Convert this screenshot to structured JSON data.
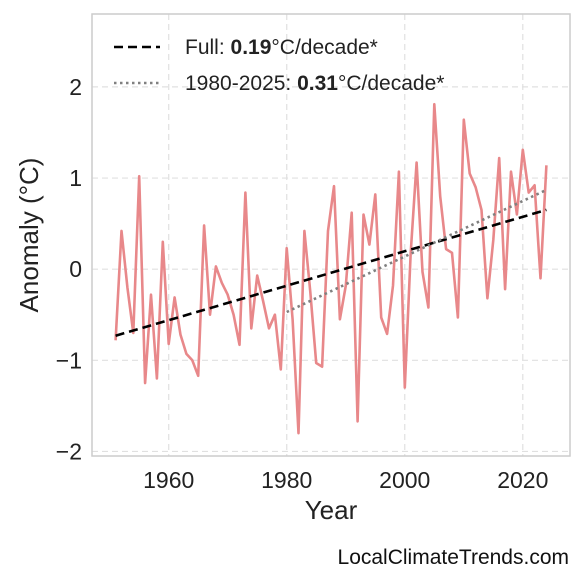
{
  "chart_data": {
    "type": "line",
    "xlabel": "Year",
    "ylabel": "Anomaly (°C)",
    "xlim": [
      1947,
      2028
    ],
    "ylim": [
      -2.05,
      2.8
    ],
    "xticks": [
      1960,
      1980,
      2000,
      2020
    ],
    "yticks": [
      -2,
      -1,
      0,
      1,
      2
    ],
    "ytick_labels": [
      "−2",
      "−1",
      "0",
      "1",
      "2"
    ],
    "grid": true,
    "legend_position": "top-left",
    "series": [
      {
        "color": "#e8888a",
        "x": [
          1951,
          1952,
          1953,
          1954,
          1955,
          1956,
          1957,
          1958,
          1959,
          1960,
          1961,
          1962,
          1963,
          1964,
          1965,
          1966,
          1967,
          1968,
          1969,
          1970,
          1971,
          1972,
          1973,
          1974,
          1975,
          1976,
          1977,
          1978,
          1979,
          1980,
          1981,
          1982,
          1983,
          1984,
          1985,
          1986,
          1987,
          1988,
          1989,
          1990,
          1991,
          1992,
          1993,
          1994,
          1995,
          1996,
          1997,
          1998,
          1999,
          2000,
          2001,
          2002,
          2003,
          2004,
          2005,
          2006,
          2007,
          2008,
          2009,
          2010,
          2011,
          2012,
          2013,
          2014,
          2015,
          2016,
          2017,
          2018,
          2019,
          2020,
          2021,
          2022,
          2023,
          2024
        ],
        "values": [
          -0.78,
          0.42,
          -0.2,
          -0.7,
          1.02,
          -1.25,
          -0.28,
          -1.2,
          0.3,
          -0.82,
          -0.31,
          -0.72,
          -0.93,
          -1.0,
          -1.17,
          0.48,
          -0.5,
          0.03,
          -0.15,
          -0.28,
          -0.5,
          -0.83,
          0.84,
          -0.65,
          -0.07,
          -0.35,
          -0.65,
          -0.5,
          -1.1,
          0.23,
          -0.55,
          -1.8,
          0.42,
          -0.25,
          -1.03,
          -1.07,
          0.42,
          0.91,
          -0.55,
          -0.18,
          0.62,
          -1.67,
          0.6,
          0.27,
          0.82,
          -0.53,
          -0.71,
          -0.18,
          1.07,
          -1.3,
          0.18,
          1.17,
          -0.03,
          -0.42,
          1.81,
          0.8,
          0.22,
          0.18,
          -0.53,
          1.64,
          1.05,
          0.9,
          0.65,
          -0.32,
          0.32,
          1.22,
          -0.22,
          1.07,
          0.6,
          1.31,
          0.84,
          0.92,
          -0.1,
          1.14
        ]
      },
      {
        "color": "#000000",
        "style": "dashed",
        "x": [
          1951,
          2024
        ],
        "values": [
          -0.73,
          0.65
        ]
      },
      {
        "color": "#808080",
        "style": "dotted",
        "x": [
          1980,
          2024
        ],
        "values": [
          -0.47,
          0.87
        ]
      }
    ],
    "legend": [
      {
        "prefix": "Full: ",
        "value": "0.19",
        "suffix": "°C/decade*",
        "style": "dashed",
        "color": "#000000"
      },
      {
        "prefix": "1980-2025: ",
        "value": "0.31",
        "suffix": "°C/decade*",
        "style": "dotted",
        "color": "#808080"
      }
    ]
  },
  "watermark": "LocalClimateTrends.com"
}
